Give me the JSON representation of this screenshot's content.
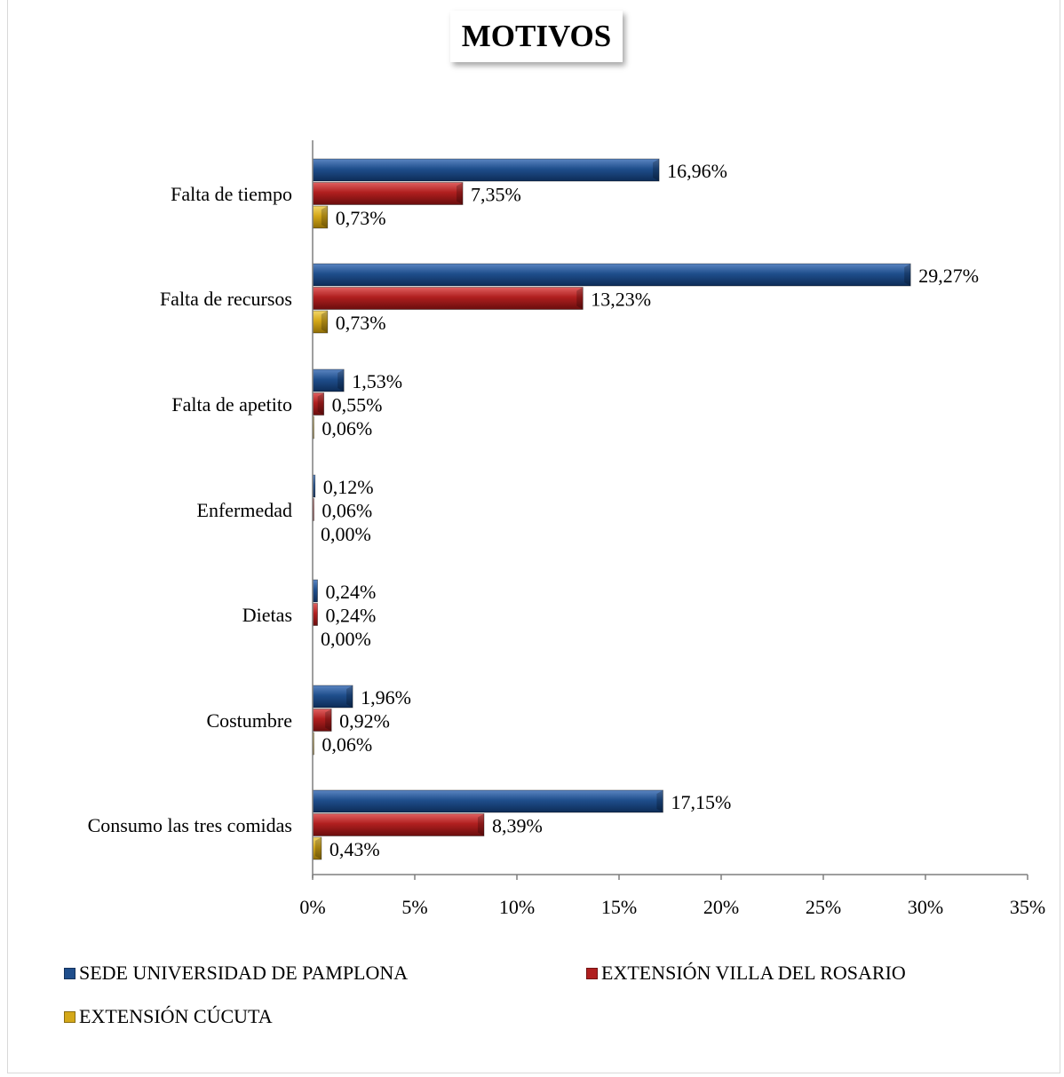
{
  "chart_data": {
    "type": "bar",
    "orientation": "horizontal",
    "title": "MOTIVOS",
    "categories": [
      "Falta de tiempo",
      "Falta de recursos",
      "Falta de apetito",
      "Enfermedad",
      "Dietas",
      "Costumbre",
      "Consumo las tres comidas"
    ],
    "series": [
      {
        "name": "SEDE UNIVERSIDAD DE PAMPLONA",
        "color": "#1f4e8c",
        "values": [
          16.96,
          29.27,
          1.53,
          0.12,
          0.24,
          1.96,
          17.15
        ],
        "labels": [
          "16,96%",
          "29,27%",
          "1,53%",
          "0,12%",
          "0,24%",
          "1,96%",
          "17,15%"
        ]
      },
      {
        "name": "EXTENSIÓN VILLA DEL ROSARIO",
        "color": "#b01f1f",
        "values": [
          7.35,
          13.23,
          0.55,
          0.06,
          0.24,
          0.92,
          8.39
        ],
        "labels": [
          "7,35%",
          "13,23%",
          "0,55%",
          "0,06%",
          "0,24%",
          "0,92%",
          "8,39%"
        ]
      },
      {
        "name": "EXTENSIÓN CÚCUTA",
        "color": "#d4a819",
        "values": [
          0.73,
          0.73,
          0.06,
          0.0,
          0.0,
          0.06,
          0.43
        ],
        "labels": [
          "0,73%",
          "0,73%",
          "0,06%",
          "0,00%",
          "0,00%",
          "0,06%",
          "0,43%"
        ]
      }
    ],
    "xlim": [
      0,
      35
    ],
    "xticks": [
      0,
      5,
      10,
      15,
      20,
      25,
      30,
      35
    ],
    "xtick_labels": [
      "0%",
      "5%",
      "10%",
      "15%",
      "20%",
      "25%",
      "30%",
      "35%"
    ],
    "xlabel": "",
    "ylabel": "",
    "grid": false,
    "legend_position": "bottom"
  }
}
